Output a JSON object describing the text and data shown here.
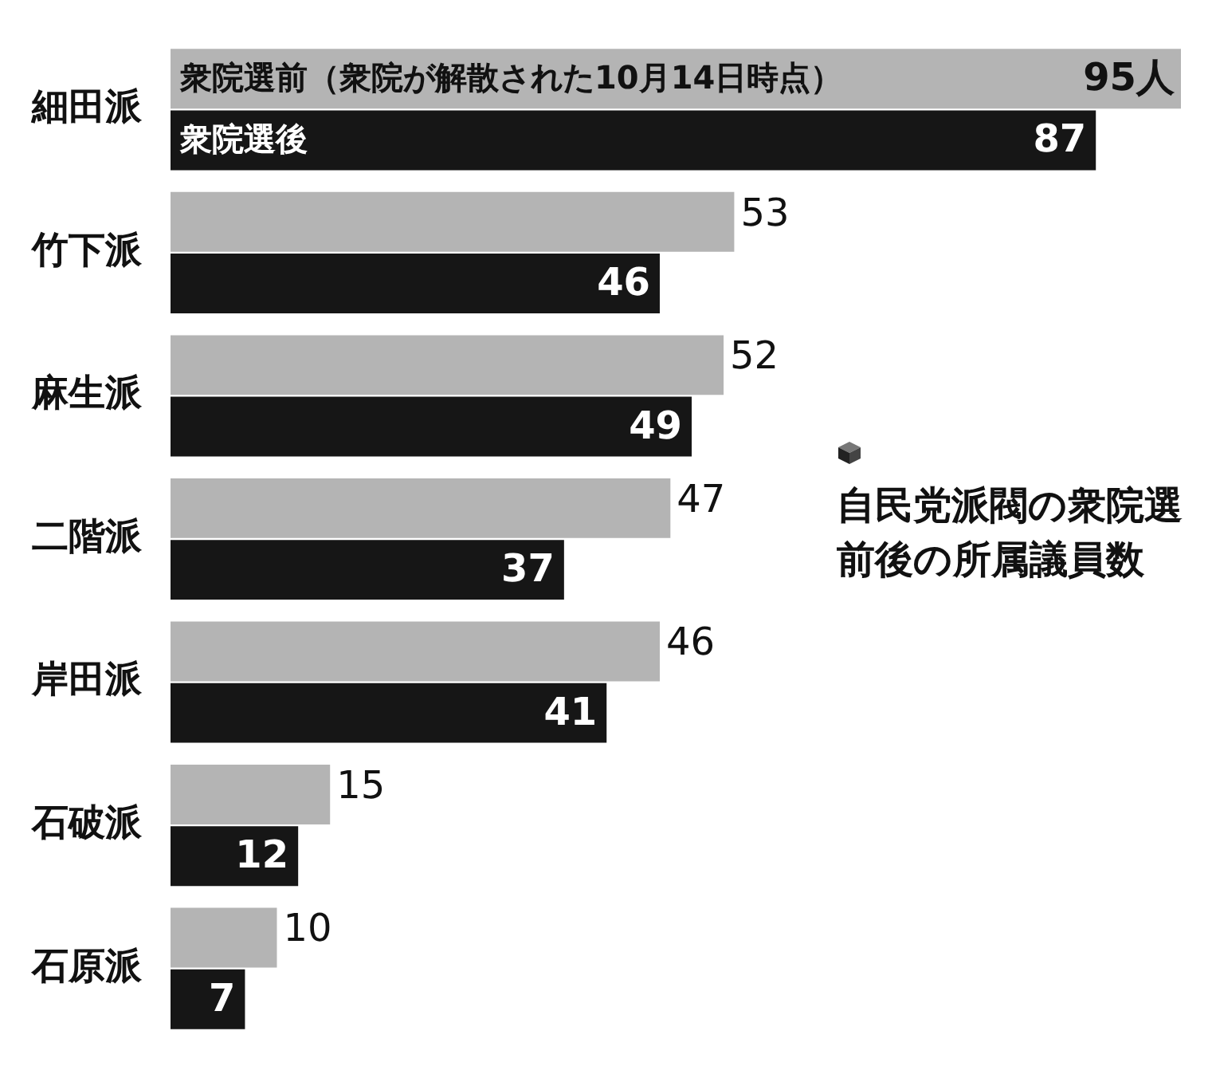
{
  "chart_data": {
    "type": "bar",
    "orientation": "horizontal",
    "title": "自民党派閥の衆院選前後の所属議員数",
    "categories": [
      "細田派",
      "竹下派",
      "麻生派",
      "二階派",
      "岸田派",
      "石破派",
      "石原派"
    ],
    "series": [
      {
        "name": "衆院選前（衆院が解散された10月14日時点）",
        "color": "#b4b4b4",
        "values": [
          95,
          53,
          52,
          47,
          46,
          15,
          10
        ],
        "value_labels": [
          "95人",
          "53",
          "52",
          "47",
          "46",
          "15",
          "10"
        ]
      },
      {
        "name": "衆院選後",
        "color": "#161616",
        "values": [
          87,
          46,
          49,
          37,
          41,
          12,
          7
        ],
        "value_labels": [
          "87",
          "46",
          "49",
          "37",
          "41",
          "12",
          "7"
        ]
      }
    ]
  }
}
